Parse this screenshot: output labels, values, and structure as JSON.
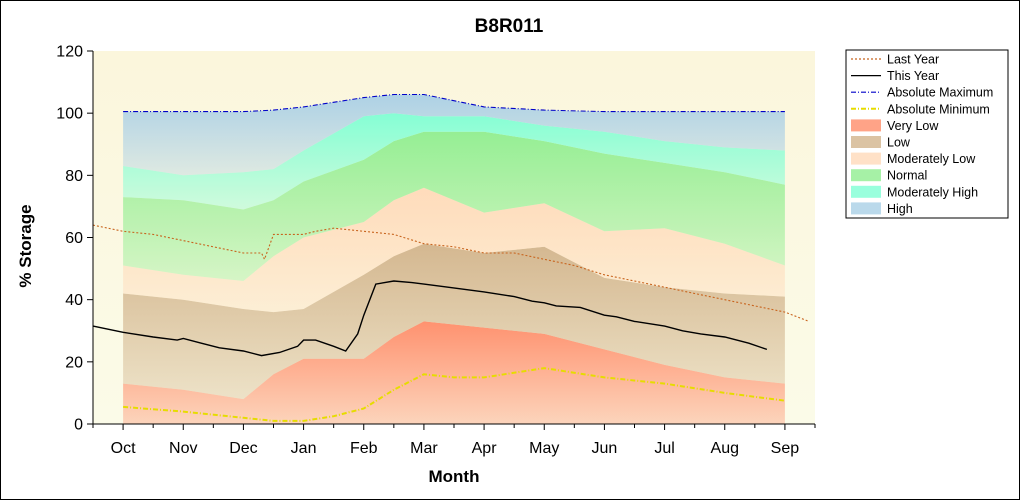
{
  "chart_data": {
    "type": "area",
    "title": "B8R011",
    "xlabel": "Month",
    "ylabel": "% Storage",
    "ylim": [
      0,
      120
    ],
    "yticks": [
      0,
      20,
      40,
      60,
      80,
      100,
      120
    ],
    "xlim": [
      -0.5,
      11.5
    ],
    "categories": [
      "Oct",
      "Nov",
      "Dec",
      "Jan",
      "Feb",
      "Mar",
      "Apr",
      "May",
      "Jun",
      "Jul",
      "Aug",
      "Sep"
    ],
    "legend_position": "right",
    "grid": false,
    "bands_x": [
      0,
      1,
      2,
      2.5,
      3,
      4,
      4.5,
      5,
      6,
      7,
      8,
      9,
      10,
      11
    ],
    "bands": [
      {
        "name": "Very Low",
        "color": "#ff8c69",
        "lower": [
          0,
          0,
          0,
          0,
          0,
          0,
          0,
          0,
          0,
          0,
          0,
          0,
          0,
          0
        ],
        "upper": [
          13,
          11,
          8,
          16,
          21,
          21,
          28,
          33,
          31,
          29,
          24,
          19,
          15,
          13
        ]
      },
      {
        "name": "Low",
        "color": "#d2b48c",
        "lower": [
          13,
          11,
          8,
          16,
          21,
          21,
          28,
          33,
          31,
          29,
          24,
          19,
          15,
          13
        ],
        "upper": [
          42,
          40,
          37,
          36,
          37,
          48,
          54,
          58,
          55,
          57,
          47,
          44,
          42,
          41
        ]
      },
      {
        "name": "Moderately Low",
        "color": "#ffdab9",
        "lower": [
          42,
          40,
          37,
          36,
          37,
          48,
          54,
          58,
          55,
          57,
          47,
          44,
          42,
          41
        ],
        "upper": [
          51,
          48,
          46,
          54,
          60,
          65,
          72,
          76,
          68,
          71,
          62,
          63,
          58,
          51
        ]
      },
      {
        "name": "Normal",
        "color": "#90ee90",
        "lower": [
          51,
          48,
          46,
          54,
          60,
          65,
          72,
          76,
          68,
          71,
          62,
          63,
          58,
          51
        ],
        "upper": [
          73,
          72,
          69,
          72,
          78,
          85,
          91,
          94,
          94,
          91,
          87,
          84,
          81,
          77
        ]
      },
      {
        "name": "Moderately High",
        "color": "#7fffd4",
        "lower": [
          73,
          72,
          69,
          72,
          78,
          85,
          91,
          94,
          94,
          91,
          87,
          84,
          81,
          77
        ],
        "upper": [
          83,
          80,
          81,
          82,
          88,
          99,
          100,
          99,
          99,
          96,
          94,
          91,
          89,
          88
        ]
      },
      {
        "name": "High",
        "color": "#a9cfe6",
        "lower": [
          83,
          80,
          81,
          82,
          88,
          99,
          100,
          99,
          99,
          96,
          94,
          91,
          89,
          88
        ],
        "upper": [
          100.5,
          100.5,
          100.5,
          101,
          102,
          105,
          106,
          106,
          102,
          101,
          100.5,
          100.5,
          100.5,
          100.5
        ]
      }
    ],
    "series": [
      {
        "name": "Last Year",
        "color": "#c8641e",
        "style": "dotted",
        "x": [
          -0.5,
          0,
          0.5,
          1,
          1.5,
          2,
          2.3,
          2.35,
          2.5,
          3,
          3.2,
          3.5,
          4,
          4.5,
          5,
          5.5,
          6,
          6.5,
          7,
          7.5,
          8,
          8.5,
          9,
          9.5,
          10,
          10.5,
          11,
          11.4
        ],
        "y": [
          64,
          62,
          61,
          59,
          57,
          55,
          55,
          53,
          61,
          61,
          62,
          63,
          62,
          61,
          58,
          57,
          55,
          55,
          53,
          51,
          48,
          46,
          44,
          42,
          40,
          38,
          36,
          33
        ]
      },
      {
        "name": "This Year",
        "color": "#000000",
        "style": "solid",
        "x": [
          -0.5,
          0,
          0.5,
          0.9,
          1,
          1.3,
          1.6,
          2,
          2.3,
          2.6,
          2.9,
          3,
          3.2,
          3.5,
          3.7,
          3.9,
          4,
          4.2,
          4.5,
          4.8,
          5,
          5.4,
          6,
          6.5,
          6.8,
          7,
          7.2,
          7.6,
          8,
          8.2,
          8.5,
          9,
          9.3,
          9.6,
          10,
          10.4,
          10.7
        ],
        "y": [
          31.5,
          29.5,
          28,
          27,
          27.5,
          26,
          24.5,
          23.5,
          22,
          23,
          25,
          27,
          27,
          25,
          23.5,
          29,
          35,
          45,
          46,
          45.5,
          45,
          44,
          42.5,
          41,
          39.5,
          39,
          38,
          37.5,
          35,
          34.5,
          33,
          31.5,
          30,
          29,
          28,
          26,
          24
        ]
      },
      {
        "name": "Absolute Maximum",
        "color": "#0000c8",
        "style": "dash-dot",
        "x": [
          0,
          1,
          2,
          2.5,
          3,
          4,
          4.5,
          5,
          6,
          7,
          8,
          9,
          10,
          11
        ],
        "y": [
          100.5,
          100.5,
          100.5,
          101,
          102,
          105,
          106,
          106,
          102,
          101,
          100.5,
          100.5,
          100.5,
          100.5
        ]
      },
      {
        "name": "Absolute Minimum",
        "color": "#e6dc00",
        "style": "dash-dot",
        "x": [
          0,
          1,
          2,
          2.5,
          3,
          3.5,
          4,
          4.5,
          5,
          5.5,
          6,
          7,
          8,
          9,
          10,
          11
        ],
        "y": [
          5.5,
          4,
          2,
          1,
          1,
          2.5,
          5,
          11,
          16,
          15,
          15,
          18,
          15,
          13,
          10,
          7.5
        ]
      }
    ],
    "legend_order": [
      "Last Year",
      "This Year",
      "Absolute Maximum",
      "Absolute Minimum",
      "Very Low",
      "Low",
      "Moderately Low",
      "Normal",
      "Moderately High",
      "High"
    ]
  }
}
